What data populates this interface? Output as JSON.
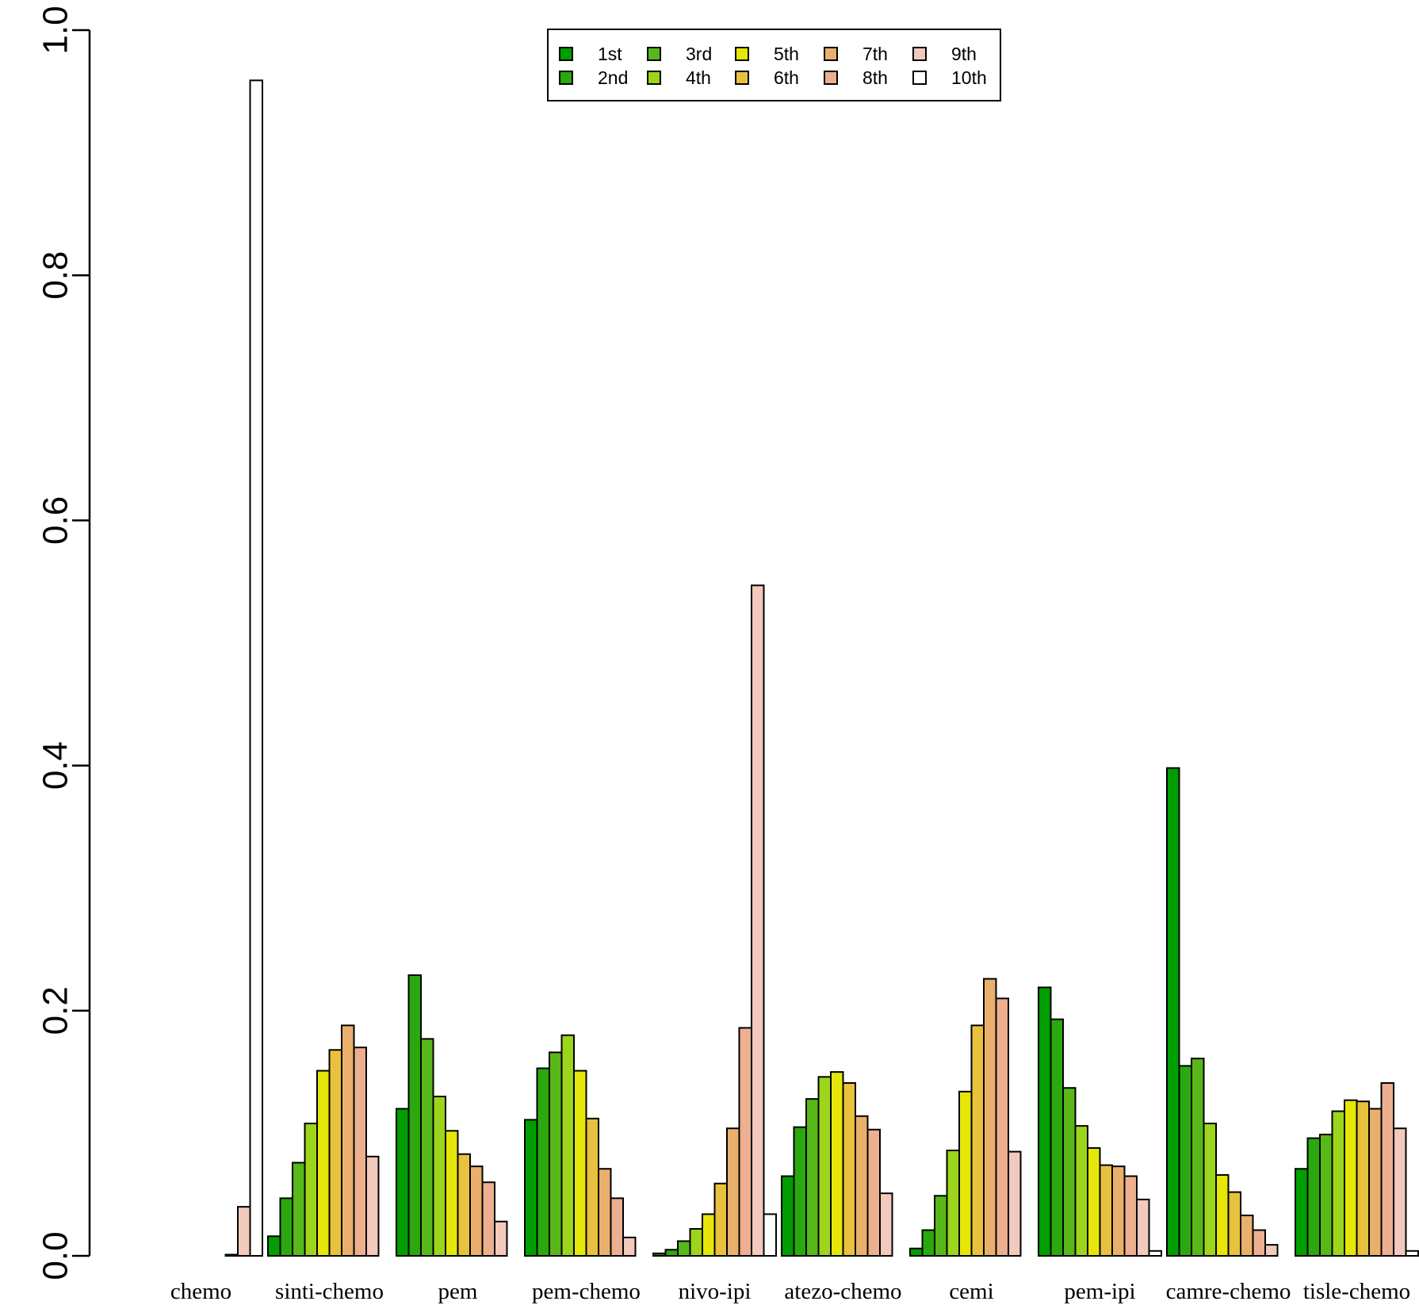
{
  "chart_data": {
    "type": "bar",
    "title": "",
    "xlabel": "",
    "ylabel": "",
    "ylim": [
      0,
      1
    ],
    "yticks": [
      "0.0",
      "0.2",
      "0.4",
      "0.6",
      "0.8",
      "1.0"
    ],
    "grid": false,
    "legend_position": "top-center",
    "categories": [
      "chemo",
      "sinti-chemo",
      "pem",
      "pem-chemo",
      "nivo-ipi",
      "atezo-chemo",
      "cemi",
      "pem-ipi",
      "camre-chemo",
      "tisle-chemo"
    ],
    "series": [
      {
        "name": "1st",
        "color": "#009e00",
        "values": [
          0.0,
          0.016,
          0.12,
          0.111,
          0.002,
          0.065,
          0.006,
          0.219,
          0.398,
          0.071
        ]
      },
      {
        "name": "2nd",
        "color": "#2aa80e",
        "values": [
          0.0,
          0.047,
          0.229,
          0.153,
          0.005,
          0.105,
          0.021,
          0.193,
          0.155,
          0.096
        ]
      },
      {
        "name": "3rd",
        "color": "#58b81a",
        "values": [
          0.0,
          0.076,
          0.177,
          0.166,
          0.012,
          0.128,
          0.049,
          0.137,
          0.161,
          0.099
        ]
      },
      {
        "name": "4th",
        "color": "#9cd51c",
        "values": [
          0.0,
          0.108,
          0.13,
          0.18,
          0.022,
          0.146,
          0.086,
          0.106,
          0.108,
          0.118
        ]
      },
      {
        "name": "5th",
        "color": "#e6e60a",
        "values": [
          0.0,
          0.151,
          0.102,
          0.151,
          0.034,
          0.15,
          0.134,
          0.088,
          0.066,
          0.127
        ]
      },
      {
        "name": "6th",
        "color": "#e8c23e",
        "values": [
          0.0,
          0.168,
          0.083,
          0.112,
          0.059,
          0.141,
          0.188,
          0.074,
          0.052,
          0.126
        ]
      },
      {
        "name": "7th",
        "color": "#e9b06d",
        "values": [
          0.0,
          0.188,
          0.073,
          0.071,
          0.104,
          0.114,
          0.226,
          0.073,
          0.033,
          0.12
        ]
      },
      {
        "name": "8th",
        "color": "#ecb090",
        "values": [
          0.001,
          0.17,
          0.06,
          0.047,
          0.186,
          0.103,
          0.21,
          0.065,
          0.021,
          0.141
        ]
      },
      {
        "name": "9th",
        "color": "#f2c9bc",
        "values": [
          0.04,
          0.081,
          0.028,
          0.015,
          0.547,
          0.051,
          0.085,
          0.046,
          0.009,
          0.104
        ]
      },
      {
        "name": "10th",
        "color": "#ffffff",
        "values": [
          0.959,
          0.0,
          0.0,
          0.0,
          0.034,
          0.0,
          0.0,
          0.004,
          0.0,
          0.004
        ]
      }
    ]
  }
}
